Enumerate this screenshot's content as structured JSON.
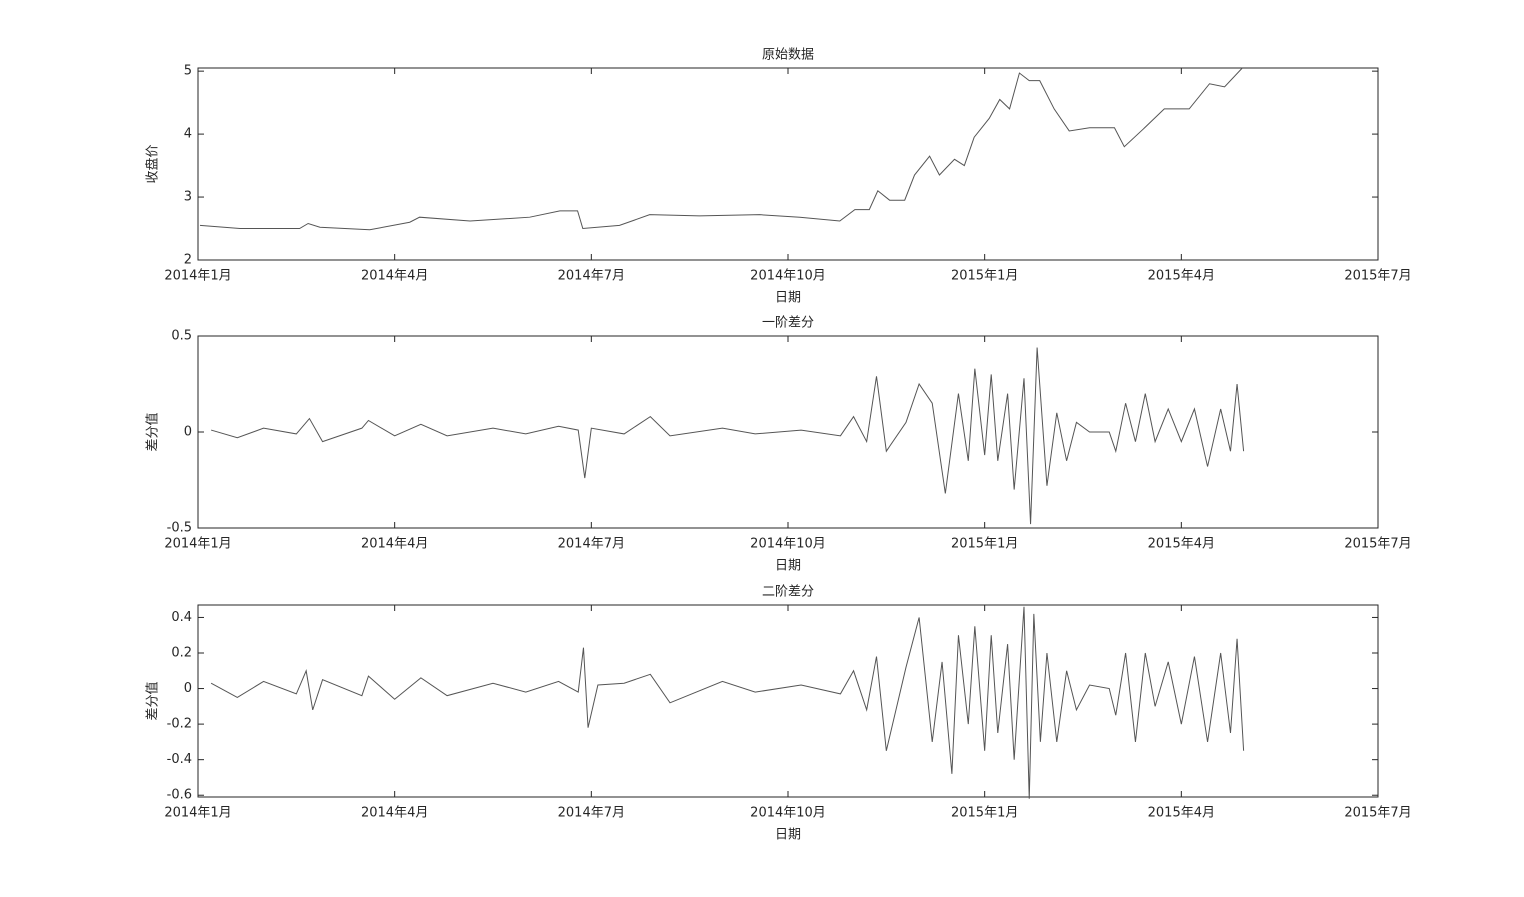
{
  "chart_data": [
    {
      "type": "line",
      "title": "原始数据",
      "xlabel": "日期",
      "ylabel": "收盘价",
      "color": "#555555",
      "grid": false,
      "xlim": [
        0,
        18
      ],
      "xticks": [
        {
          "value": 0,
          "label": "2014年1月"
        },
        {
          "value": 3,
          "label": "2014年4月"
        },
        {
          "value": 6,
          "label": "2014年7月"
        },
        {
          "value": 9,
          "label": "2014年10月"
        },
        {
          "value": 12,
          "label": "2015年1月"
        },
        {
          "value": 15,
          "label": "2015年4月"
        },
        {
          "value": 18,
          "label": "2015年7月"
        }
      ],
      "ylim": [
        2,
        5.05
      ],
      "yticks": [
        2,
        3,
        4,
        5
      ],
      "x": [
        0.03,
        0.64,
        1.55,
        1.68,
        1.86,
        2.62,
        3.23,
        3.38,
        4.15,
        5.06,
        5.52,
        5.79,
        5.87,
        6.43,
        6.89,
        7.65,
        8.57,
        9.18,
        9.79,
        10.02,
        10.24,
        10.37,
        10.55,
        10.78,
        10.93,
        11.16,
        11.31,
        11.54,
        11.69,
        11.84,
        12.07,
        12.23,
        12.38,
        12.53,
        12.68,
        12.84,
        13.06,
        13.29,
        13.6,
        13.98,
        14.13,
        14.44,
        14.74,
        15.12,
        15.43,
        15.66,
        15.93
      ],
      "values": [
        2.55,
        2.5,
        2.5,
        2.58,
        2.52,
        2.48,
        2.6,
        2.68,
        2.62,
        2.68,
        2.78,
        2.78,
        2.5,
        2.55,
        2.72,
        2.7,
        2.72,
        2.68,
        2.62,
        2.8,
        2.8,
        3.1,
        2.95,
        2.95,
        3.35,
        3.65,
        3.35,
        3.6,
        3.5,
        3.95,
        4.25,
        4.55,
        4.4,
        4.97,
        4.85,
        4.85,
        4.4,
        4.05,
        4.1,
        4.1,
        3.8,
        4.1,
        4.4,
        4.4,
        4.8,
        4.75,
        5.05
      ]
    },
    {
      "type": "line",
      "title": "一阶差分",
      "xlabel": "日期",
      "ylabel": "差分值",
      "color": "#555555",
      "grid": false,
      "xlim": [
        0,
        18
      ],
      "xticks": [
        {
          "value": 0,
          "label": "2014年1月"
        },
        {
          "value": 3,
          "label": "2014年4月"
        },
        {
          "value": 6,
          "label": "2014年7月"
        },
        {
          "value": 9,
          "label": "2014年10月"
        },
        {
          "value": 12,
          "label": "2015年1月"
        },
        {
          "value": 15,
          "label": "2015年4月"
        },
        {
          "value": 18,
          "label": "2015年7月"
        }
      ],
      "ylim": [
        -0.5,
        0.5
      ],
      "yticks": [
        -0.5,
        0,
        0.5
      ],
      "x": [
        0.2,
        0.6,
        1.0,
        1.5,
        1.7,
        1.9,
        2.5,
        2.6,
        3.0,
        3.4,
        3.8,
        4.5,
        5.0,
        5.5,
        5.8,
        5.9,
        6.0,
        6.5,
        6.9,
        7.2,
        8.0,
        8.5,
        9.2,
        9.8,
        10.0,
        10.2,
        10.35,
        10.5,
        10.8,
        11.0,
        11.2,
        11.4,
        11.6,
        11.75,
        11.85,
        12.0,
        12.1,
        12.2,
        12.35,
        12.45,
        12.6,
        12.7,
        12.8,
        12.95,
        13.1,
        13.25,
        13.4,
        13.6,
        13.9,
        14.0,
        14.15,
        14.3,
        14.45,
        14.6,
        14.8,
        15.0,
        15.2,
        15.4,
        15.6,
        15.75,
        15.85,
        15.95
      ],
      "values": [
        0.01,
        -0.03,
        0.02,
        -0.01,
        0.07,
        -0.05,
        0.02,
        0.06,
        -0.02,
        0.04,
        -0.02,
        0.02,
        -0.01,
        0.03,
        0.01,
        -0.24,
        0.02,
        -0.01,
        0.08,
        -0.02,
        0.02,
        -0.01,
        0.01,
        -0.02,
        0.08,
        -0.05,
        0.29,
        -0.1,
        0.05,
        0.25,
        0.15,
        -0.32,
        0.2,
        -0.15,
        0.33,
        -0.12,
        0.3,
        -0.15,
        0.2,
        -0.3,
        0.28,
        -0.48,
        0.44,
        -0.28,
        0.1,
        -0.15,
        0.05,
        0,
        0,
        -0.1,
        0.15,
        -0.05,
        0.2,
        -0.05,
        0.12,
        -0.05,
        0.12,
        -0.18,
        0.12,
        -0.1,
        0.25,
        -0.1
      ]
    },
    {
      "type": "line",
      "title": "二阶差分",
      "xlabel": "日期",
      "ylabel": "差分值",
      "color": "#555555",
      "grid": false,
      "xlim": [
        0,
        18
      ],
      "xticks": [
        {
          "value": 0,
          "label": "2014年1月"
        },
        {
          "value": 3,
          "label": "2014年4月"
        },
        {
          "value": 6,
          "label": "2014年7月"
        },
        {
          "value": 9,
          "label": "2014年10月"
        },
        {
          "value": 12,
          "label": "2015年1月"
        },
        {
          "value": 15,
          "label": "2015年4月"
        },
        {
          "value": 18,
          "label": "2015年7月"
        }
      ],
      "ylim": [
        -0.61,
        0.47
      ],
      "yticks": [
        -0.6,
        -0.4,
        -0.2,
        0,
        0.2,
        0.4
      ],
      "x": [
        0.2,
        0.6,
        1.0,
        1.5,
        1.65,
        1.75,
        1.9,
        2.5,
        2.6,
        3.0,
        3.4,
        3.8,
        4.5,
        5.0,
        5.5,
        5.8,
        5.88,
        5.95,
        6.1,
        6.5,
        6.9,
        7.2,
        8.0,
        8.5,
        9.2,
        9.8,
        10.0,
        10.2,
        10.35,
        10.5,
        10.8,
        11.0,
        11.2,
        11.35,
        11.5,
        11.6,
        11.75,
        11.85,
        12.0,
        12.1,
        12.2,
        12.35,
        12.45,
        12.6,
        12.68,
        12.75,
        12.85,
        12.95,
        13.1,
        13.25,
        13.4,
        13.6,
        13.9,
        14.0,
        14.15,
        14.3,
        14.45,
        14.6,
        14.8,
        15.0,
        15.2,
        15.4,
        15.6,
        15.75,
        15.85,
        15.95
      ],
      "values": [
        0.03,
        -0.05,
        0.04,
        -0.03,
        0.1,
        -0.12,
        0.05,
        -0.04,
        0.07,
        -0.06,
        0.06,
        -0.04,
        0.03,
        -0.02,
        0.04,
        -0.02,
        0.23,
        -0.22,
        0.02,
        0.03,
        0.08,
        -0.08,
        0.04,
        -0.02,
        0.02,
        -0.03,
        0.1,
        -0.12,
        0.18,
        -0.35,
        0.12,
        0.4,
        -0.3,
        0.15,
        -0.48,
        0.3,
        -0.2,
        0.35,
        -0.35,
        0.3,
        -0.25,
        0.25,
        -0.4,
        0.46,
        -0.62,
        0.42,
        -0.3,
        0.2,
        -0.3,
        0.1,
        -0.12,
        0.02,
        0,
        -0.15,
        0.2,
        -0.3,
        0.2,
        -0.1,
        0.15,
        -0.2,
        0.18,
        -0.3,
        0.2,
        -0.25,
        0.28,
        -0.35
      ]
    }
  ]
}
